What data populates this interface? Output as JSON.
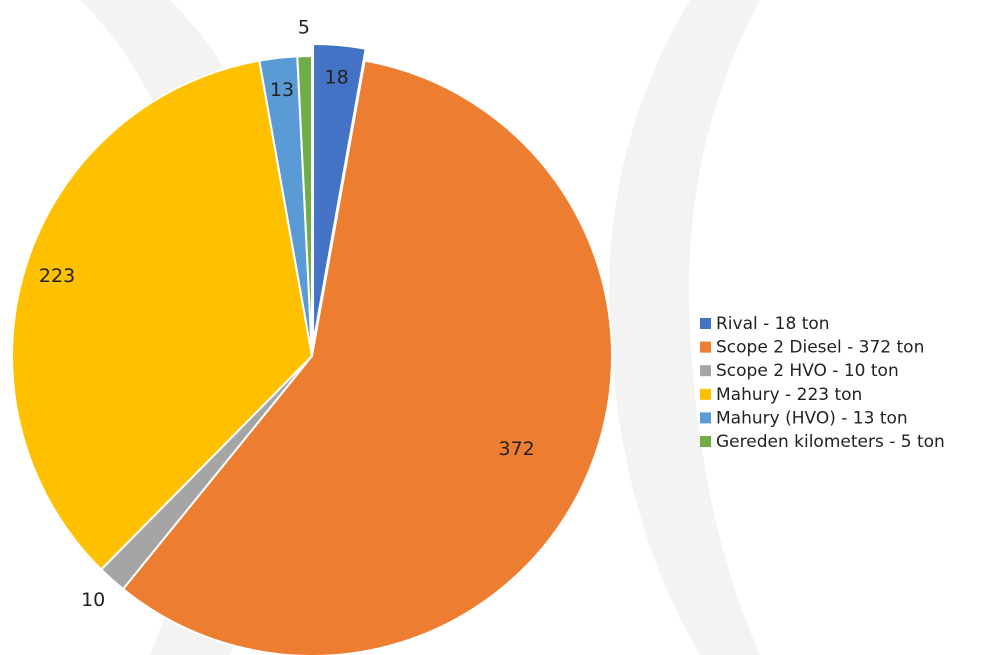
{
  "chart_data": {
    "type": "pie",
    "categories": [
      "Rival - 18 ton",
      "Scope 2 Diesel - 372 ton",
      "Scope 2 HVO - 10 ton",
      "Mahury - 223 ton",
      "Mahury (HVO) - 13 ton",
      "Gereden kilometers - 5 ton"
    ],
    "values": [
      18,
      372,
      10,
      223,
      13,
      5
    ],
    "colors": [
      "#4472c4",
      "#ed7d31",
      "#a5a5a5",
      "#ffc000",
      "#5b9bd5",
      "#70ad47"
    ],
    "legend": "right"
  }
}
